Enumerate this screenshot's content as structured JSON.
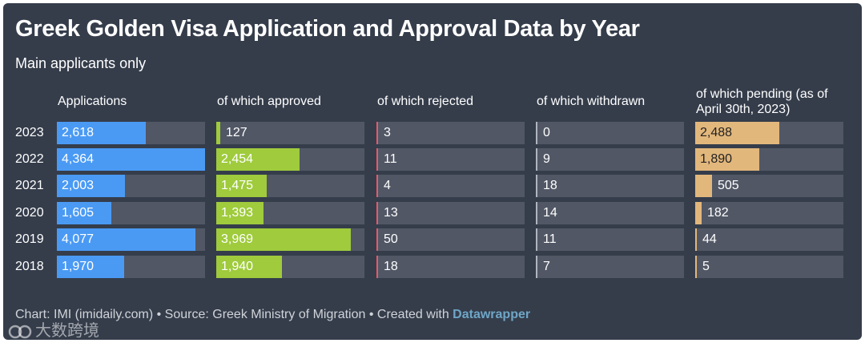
{
  "title": "Greek Golden Visa Application and Approval Data by Year",
  "subtitle": "Main applicants only",
  "chart_data": {
    "type": "table",
    "title": "Greek Golden Visa Application and Approval Data by Year",
    "subtitle": "Main applicants only",
    "years": [
      "2023",
      "2022",
      "2021",
      "2020",
      "2019",
      "2018"
    ],
    "columns": [
      {
        "key": "applications",
        "label": "Applications",
        "color": "#4a9af4",
        "values": [
          2618,
          4364,
          2003,
          1605,
          4077,
          1970
        ],
        "max": 4364
      },
      {
        "key": "approved",
        "label": "of which approved",
        "color": "#9fcb3c",
        "values": [
          127,
          2454,
          1475,
          1393,
          3969,
          1940
        ],
        "max": 4364
      },
      {
        "key": "rejected",
        "label": "of which rejected",
        "color": "#e45c6c",
        "values": [
          3,
          11,
          4,
          13,
          50,
          18
        ],
        "max": 4364
      },
      {
        "key": "withdrawn",
        "label": "of which withdrawn",
        "color": "#b0b5bf",
        "values": [
          0,
          9,
          18,
          14,
          11,
          7
        ],
        "max": 4364
      },
      {
        "key": "pending",
        "label": "of which pending (as of April 30th, 2023)",
        "color": "#e2b77c",
        "values": [
          2488,
          1890,
          505,
          182,
          44,
          5
        ],
        "max": 4364
      }
    ]
  },
  "footer": {
    "text": "Chart: IMI (imidaily.com) • Source: Greek Ministry of Migration • Created with ",
    "brand": "Datawrapper"
  },
  "watermark": "大数跨境"
}
